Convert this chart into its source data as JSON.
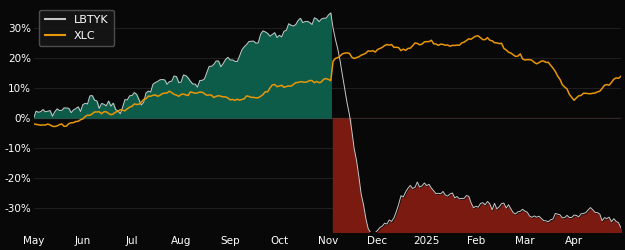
{
  "background_color": "#080808",
  "plot_bg_color": "#080808",
  "lbtyk_color": "#c8c8c8",
  "xlc_color": "#e8960a",
  "fill_positive_color": "#0d5c4a",
  "fill_negative_color": "#7a1a10",
  "ylim": [
    -0.38,
    0.38
  ],
  "yticks": [
    -0.3,
    -0.2,
    -0.1,
    0.0,
    0.1,
    0.2,
    0.3
  ],
  "ytick_labels": [
    "-30%",
    "-20%",
    "-10%",
    "0%",
    "10%",
    "20%",
    "30%"
  ],
  "x_labels": [
    "May",
    "Jun",
    "Jul",
    "Aug",
    "Sep",
    "Oct",
    "Nov",
    "Dec",
    "2025",
    "Feb",
    "Mar",
    "Apr"
  ],
  "x_tick_positions": [
    0,
    21,
    42,
    63,
    84,
    105,
    126,
    147,
    168,
    189,
    210,
    231
  ],
  "legend_labels": [
    "LBTYK",
    "XLC"
  ],
  "n_points": 252,
  "split_index": 128
}
